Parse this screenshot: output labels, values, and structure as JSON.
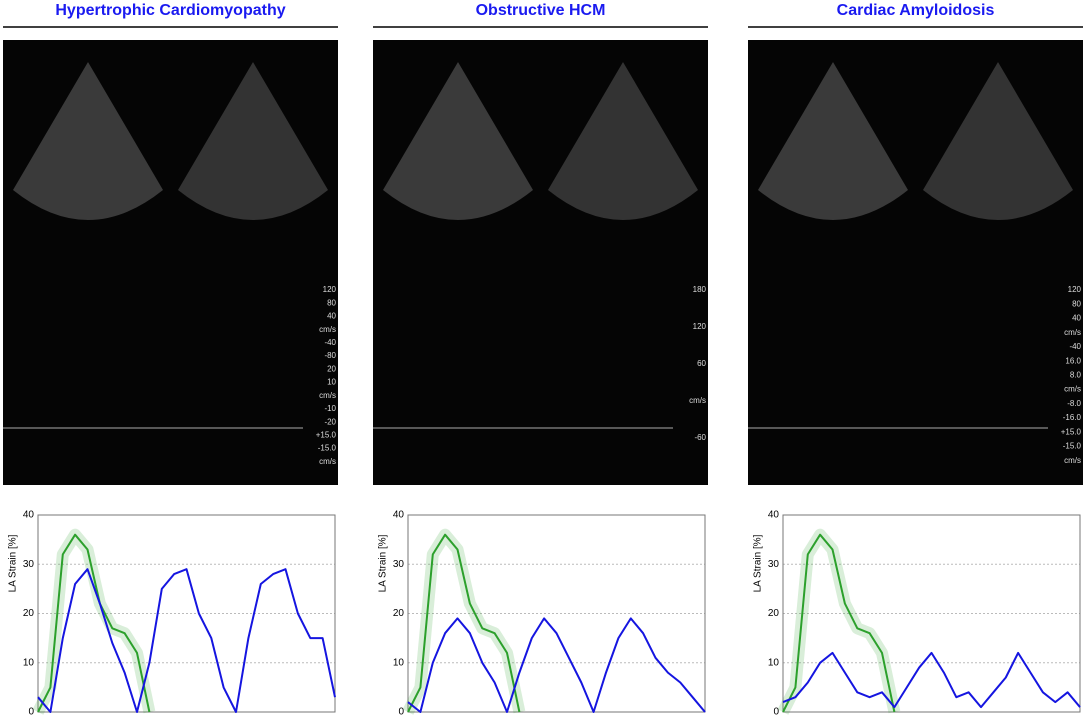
{
  "chart_data": [
    {
      "type": "line",
      "title": "Hypertrophic Cardiomyopathy",
      "ylabel": "LA Strain [%]",
      "annotations": [
        "120",
        "80",
        "40",
        "cm/s",
        "-40",
        "-80",
        "20",
        "10",
        "cm/s",
        "-10",
        "-20",
        "+15.0",
        "-15.0",
        "cm/s"
      ],
      "x": [
        0,
        1,
        2,
        3,
        4,
        5,
        6,
        7,
        8,
        9,
        10,
        11,
        12,
        13,
        14,
        15,
        16,
        17,
        18,
        19,
        20,
        21,
        22,
        23,
        24
      ],
      "xlim": [
        0,
        24
      ],
      "ylim": [
        0,
        40
      ],
      "yticks": [
        0,
        10,
        20,
        30,
        40
      ],
      "grid": true,
      "series": [
        {
          "color": "#2ca02c",
          "values": [
            0,
            5,
            32,
            36,
            33,
            22,
            17,
            16,
            12,
            0,
            null,
            null,
            null,
            null,
            null,
            null,
            null,
            null,
            null,
            null,
            null,
            null,
            null,
            null,
            null
          ]
        },
        {
          "color": "#1515e0",
          "values": [
            3,
            0,
            15,
            26,
            29,
            22,
            14,
            8,
            0,
            10,
            25,
            28,
            29,
            20,
            15,
            5,
            0,
            15,
            26,
            28,
            29,
            20,
            15,
            15,
            3
          ]
        }
      ]
    },
    {
      "type": "line",
      "title": "Obstructive HCM",
      "ylabel": "LA Strain [%]",
      "annotations": [
        "180",
        "120",
        "60",
        "cm/s",
        "-60"
      ],
      "x": [
        0,
        1,
        2,
        3,
        4,
        5,
        6,
        7,
        8,
        9,
        10,
        11,
        12,
        13,
        14,
        15,
        16,
        17,
        18,
        19,
        20,
        21,
        22,
        23,
        24
      ],
      "xlim": [
        0,
        24
      ],
      "ylim": [
        0,
        40
      ],
      "yticks": [
        0,
        10,
        20,
        30,
        40
      ],
      "grid": true,
      "series": [
        {
          "color": "#2ca02c",
          "values": [
            0,
            5,
            32,
            36,
            33,
            22,
            17,
            16,
            12,
            0,
            null,
            null,
            null,
            null,
            null,
            null,
            null,
            null,
            null,
            null,
            null,
            null,
            null,
            null,
            null
          ]
        },
        {
          "color": "#1515e0",
          "values": [
            2,
            0,
            10,
            16,
            19,
            16,
            10,
            6,
            0,
            8,
            15,
            19,
            16,
            11,
            6,
            0,
            8,
            15,
            19,
            16,
            11,
            8,
            6,
            3,
            0
          ]
        }
      ]
    },
    {
      "type": "line",
      "title": "Cardiac Amyloidosis",
      "ylabel": "LA Strain [%]",
      "annotations": [
        "120",
        "80",
        "40",
        "cm/s",
        "-40",
        "16.0",
        "8.0",
        "cm/s",
        "-8.0",
        "-16.0",
        "+15.0",
        "-15.0",
        "cm/s"
      ],
      "x": [
        0,
        1,
        2,
        3,
        4,
        5,
        6,
        7,
        8,
        9,
        10,
        11,
        12,
        13,
        14,
        15,
        16,
        17,
        18,
        19,
        20,
        21,
        22,
        23,
        24
      ],
      "xlim": [
        0,
        24
      ],
      "ylim": [
        0,
        40
      ],
      "yticks": [
        0,
        10,
        20,
        30,
        40
      ],
      "grid": true,
      "series": [
        {
          "color": "#2ca02c",
          "values": [
            0,
            5,
            32,
            36,
            33,
            22,
            17,
            16,
            12,
            0,
            null,
            null,
            null,
            null,
            null,
            null,
            null,
            null,
            null,
            null,
            null,
            null,
            null,
            null,
            null
          ]
        },
        {
          "color": "#1515e0",
          "values": [
            2,
            3,
            6,
            10,
            12,
            8,
            4,
            3,
            4,
            1,
            5,
            9,
            12,
            8,
            3,
            4,
            1,
            4,
            7,
            12,
            8,
            4,
            2,
            4,
            1
          ]
        }
      ]
    }
  ]
}
